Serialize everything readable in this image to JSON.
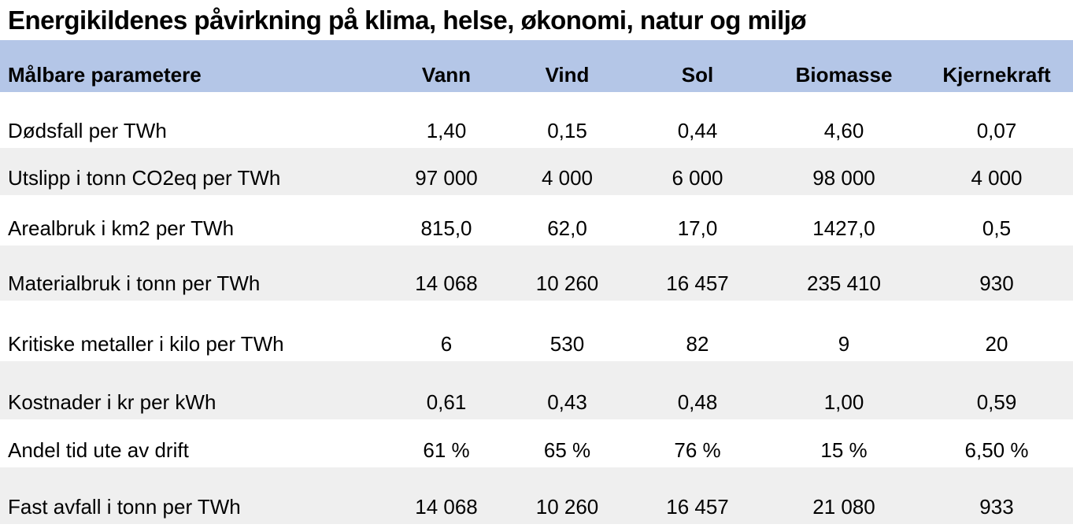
{
  "chart_data": {
    "type": "table",
    "title": "Energikildenes påvirkning på klima, helse, økonomi, natur og miljø",
    "columns": [
      "Målbare parametere",
      "Vann",
      "Vind",
      "Sol",
      "Biomasse",
      "Kjernekraft"
    ],
    "rows": [
      {
        "label": "Dødsfall per TWh",
        "values": [
          "1,40",
          "0,15",
          "0,44",
          "4,60",
          "0,07"
        ]
      },
      {
        "label": "Utslipp i tonn CO2eq per TWh",
        "values": [
          "97 000",
          "4 000",
          "6 000",
          "98 000",
          "4 000"
        ]
      },
      {
        "label": "Arealbruk i km2 per TWh",
        "values": [
          "815,0",
          "62,0",
          "17,0",
          "1427,0",
          "0,5"
        ]
      },
      {
        "label": "Materialbruk i tonn per TWh",
        "values": [
          "14 068",
          "10 260",
          "16 457",
          "235 410",
          "930"
        ]
      },
      {
        "label": "Kritiske metaller i kilo per TWh",
        "values": [
          "6",
          "530",
          "82",
          "9",
          "20"
        ]
      },
      {
        "label": "Kostnader i kr per kWh",
        "values": [
          "0,61",
          "0,43",
          "0,48",
          "1,00",
          "0,59"
        ]
      },
      {
        "label": "Andel tid ute av drift",
        "values": [
          "61 %",
          "65 %",
          "76 %",
          "15 %",
          "6,50 %"
        ]
      },
      {
        "label": "Fast avfall i tonn per TWh",
        "values": [
          "14 068",
          "10 260",
          "16 457",
          "21 080",
          "933"
        ]
      }
    ]
  },
  "colors": {
    "header_bg": "#b4c6e7",
    "stripe_bg": "#efefef",
    "text_color": "#000000",
    "page_bg": "#ffffff"
  }
}
